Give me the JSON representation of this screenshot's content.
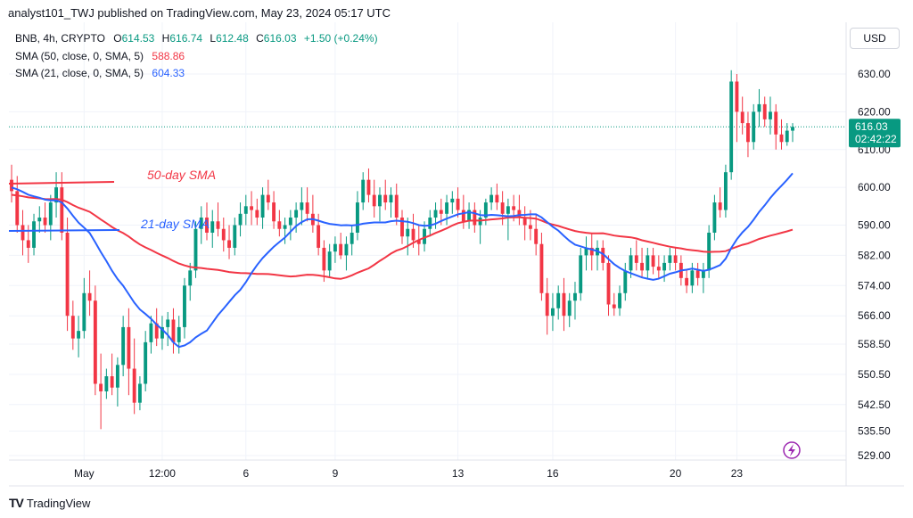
{
  "header": {
    "published_text": "analyst101_TWJ published on TradingView.com, May 23, 2024 05:17 UTC"
  },
  "legend": {
    "symbol": "BNB, 4h, CRYPTO",
    "ohlc": [
      {
        "key": "O",
        "value": "614.53"
      },
      {
        "key": "H",
        "value": "616.74"
      },
      {
        "key": "L",
        "value": "612.48"
      },
      {
        "key": "C",
        "value": "616.03"
      }
    ],
    "change": "+1.50 (+0.24%)",
    "sma50_label": "SMA (50, close, 0, SMA, 5)",
    "sma50_value": "588.86",
    "sma21_label": "SMA (21, close, 0, SMA, 5)",
    "sma21_value": "604.33"
  },
  "currency": "USD",
  "footer": {
    "brand": "TradingView",
    "logo": "TV"
  },
  "colors": {
    "up": "#089981",
    "down": "#f23645",
    "sma50": "#f23645",
    "sma21": "#2962ff",
    "price_tag": "#089981"
  },
  "chart_data": {
    "type": "candlestick",
    "title": "",
    "xlabel": "",
    "ylabel": "",
    "ylim": [
      527,
      636
    ],
    "y_ticks": [
      "630.00",
      "620.00",
      "610.00",
      "600.00",
      "590.00",
      "582.00",
      "574.00",
      "566.00",
      "558.50",
      "550.50",
      "542.50",
      "535.50",
      "529.00"
    ],
    "x_ticks": [
      "May",
      "12:00",
      "6",
      "9",
      "13",
      "16",
      "20",
      "23"
    ],
    "price_tag": {
      "price": "616.03",
      "countdown": "02:42:22"
    },
    "annotations": [
      {
        "text": "50-day SMA",
        "color": "#f23645"
      },
      {
        "text": "21-day SMA",
        "color": "#2962ff"
      }
    ],
    "candles": [
      [
        602,
        606,
        596,
        599
      ],
      [
        599,
        603,
        588,
        590
      ],
      [
        590,
        594,
        582,
        586
      ],
      [
        586,
        590,
        580,
        584
      ],
      [
        584,
        593,
        582,
        591
      ],
      [
        591,
        595,
        588,
        592
      ],
      [
        592,
        596,
        588,
        590
      ],
      [
        590,
        598,
        586,
        596
      ],
      [
        596,
        604,
        592,
        600
      ],
      [
        600,
        604,
        586,
        588
      ],
      [
        588,
        592,
        562,
        566
      ],
      [
        566,
        570,
        557,
        560
      ],
      [
        560,
        566,
        555,
        562
      ],
      [
        562,
        576,
        560,
        572
      ],
      [
        572,
        578,
        566,
        570
      ],
      [
        570,
        574,
        545,
        548
      ],
      [
        548,
        556,
        536,
        546
      ],
      [
        546,
        552,
        544,
        550
      ],
      [
        550,
        556,
        545,
        547
      ],
      [
        547,
        555,
        542,
        553
      ],
      [
        553,
        566,
        550,
        563
      ],
      [
        563,
        568,
        545,
        552
      ],
      [
        552,
        560,
        540,
        543
      ],
      [
        543,
        550,
        541,
        548
      ],
      [
        548,
        562,
        546,
        559
      ],
      [
        559,
        566,
        556,
        564
      ],
      [
        564,
        568,
        558,
        560
      ],
      [
        560,
        566,
        557,
        563
      ],
      [
        563,
        567,
        558,
        565
      ],
      [
        565,
        568,
        556,
        559
      ],
      [
        559,
        566,
        556,
        563
      ],
      [
        563,
        576,
        560,
        574
      ],
      [
        574,
        580,
        570,
        578
      ],
      [
        578,
        591,
        576,
        589
      ],
      [
        589,
        595,
        585,
        592
      ],
      [
        592,
        596,
        586,
        588
      ],
      [
        588,
        594,
        584,
        591
      ],
      [
        591,
        596,
        587,
        589
      ],
      [
        589,
        592,
        583,
        586
      ],
      [
        586,
        590,
        581,
        584
      ],
      [
        584,
        592,
        582,
        590
      ],
      [
        590,
        596,
        587,
        593
      ],
      [
        593,
        598,
        590,
        595
      ],
      [
        595,
        599,
        590,
        594
      ],
      [
        594,
        597,
        590,
        592
      ],
      [
        592,
        600,
        589,
        598
      ],
      [
        598,
        602,
        594,
        596
      ],
      [
        596,
        599,
        589,
        591
      ],
      [
        591,
        594,
        587,
        589
      ],
      [
        589,
        592,
        585,
        590
      ],
      [
        590,
        594,
        586,
        592
      ],
      [
        592,
        596,
        588,
        594
      ],
      [
        594,
        600,
        590,
        596
      ],
      [
        596,
        600,
        591,
        593
      ],
      [
        593,
        598,
        588,
        590
      ],
      [
        590,
        593,
        582,
        584
      ],
      [
        584,
        586,
        575,
        578
      ],
      [
        578,
        585,
        576,
        583
      ],
      [
        583,
        587,
        580,
        585
      ],
      [
        585,
        588,
        581,
        582
      ],
      [
        582,
        587,
        578,
        585
      ],
      [
        585,
        590,
        582,
        588
      ],
      [
        588,
        599,
        586,
        596
      ],
      [
        596,
        604,
        594,
        602
      ],
      [
        602,
        605,
        596,
        598
      ],
      [
        598,
        602,
        592,
        595
      ],
      [
        595,
        600,
        591,
        598
      ],
      [
        598,
        602,
        594,
        596
      ],
      [
        596,
        600,
        592,
        598
      ],
      [
        598,
        601,
        590,
        592
      ],
      [
        592,
        594,
        585,
        587
      ],
      [
        587,
        592,
        582,
        589
      ],
      [
        589,
        593,
        584,
        586
      ],
      [
        586,
        590,
        582,
        585
      ],
      [
        585,
        591,
        583,
        589
      ],
      [
        589,
        594,
        587,
        592
      ],
      [
        592,
        596,
        589,
        594
      ],
      [
        594,
        597,
        590,
        593
      ],
      [
        593,
        598,
        590,
        596
      ],
      [
        596,
        599,
        593,
        597
      ],
      [
        597,
        600,
        592,
        594
      ],
      [
        594,
        598,
        589,
        591
      ],
      [
        591,
        596,
        589,
        594
      ],
      [
        594,
        596,
        588,
        590
      ],
      [
        590,
        594,
        585,
        592
      ],
      [
        592,
        597,
        590,
        596
      ],
      [
        596,
        600,
        594,
        598
      ],
      [
        598,
        601,
        594,
        596
      ],
      [
        596,
        599,
        590,
        593
      ],
      [
        593,
        597,
        586,
        595
      ],
      [
        595,
        598,
        591,
        594
      ],
      [
        594,
        598,
        590,
        592
      ],
      [
        592,
        595,
        586,
        590
      ],
      [
        590,
        594,
        586,
        589
      ],
      [
        589,
        593,
        582,
        585
      ],
      [
        585,
        588,
        570,
        572
      ],
      [
        572,
        576,
        561,
        566
      ],
      [
        566,
        572,
        562,
        568
      ],
      [
        568,
        574,
        565,
        572
      ],
      [
        572,
        576,
        562,
        566
      ],
      [
        566,
        572,
        563,
        570
      ],
      [
        570,
        575,
        565,
        572
      ],
      [
        572,
        584,
        570,
        582
      ],
      [
        582,
        587,
        578,
        584
      ],
      [
        584,
        588,
        578,
        582
      ],
      [
        582,
        586,
        578,
        584
      ],
      [
        584,
        586,
        578,
        580
      ],
      [
        580,
        582,
        566,
        569
      ],
      [
        569,
        572,
        566,
        568
      ],
      [
        568,
        574,
        566,
        572
      ],
      [
        572,
        580,
        570,
        578
      ],
      [
        578,
        584,
        576,
        582
      ],
      [
        582,
        586,
        578,
        580
      ],
      [
        580,
        584,
        576,
        578
      ],
      [
        578,
        584,
        576,
        582
      ],
      [
        582,
        584,
        577,
        579
      ],
      [
        579,
        582,
        576,
        578
      ],
      [
        578,
        582,
        575,
        580
      ],
      [
        580,
        584,
        578,
        582
      ],
      [
        582,
        584,
        578,
        580
      ],
      [
        580,
        582,
        574,
        576
      ],
      [
        576,
        578,
        572,
        574
      ],
      [
        574,
        580,
        572,
        578
      ],
      [
        578,
        580,
        574,
        576
      ],
      [
        576,
        580,
        572,
        578
      ],
      [
        578,
        590,
        576,
        588
      ],
      [
        588,
        598,
        586,
        596
      ],
      [
        596,
        600,
        592,
        594
      ],
      [
        594,
        606,
        592,
        604
      ],
      [
        604,
        631,
        602,
        628
      ],
      [
        628,
        630,
        612,
        620
      ],
      [
        620,
        624,
        614,
        617
      ],
      [
        617,
        620,
        608,
        612
      ],
      [
        612,
        622,
        610,
        620
      ],
      [
        620,
        626,
        616,
        622
      ],
      [
        622,
        624,
        616,
        618
      ],
      [
        618,
        624,
        614,
        620
      ],
      [
        620,
        622,
        610,
        614
      ],
      [
        614,
        618,
        610,
        612
      ],
      [
        612,
        617,
        611,
        615
      ],
      [
        615,
        617,
        612,
        616
      ]
    ]
  }
}
